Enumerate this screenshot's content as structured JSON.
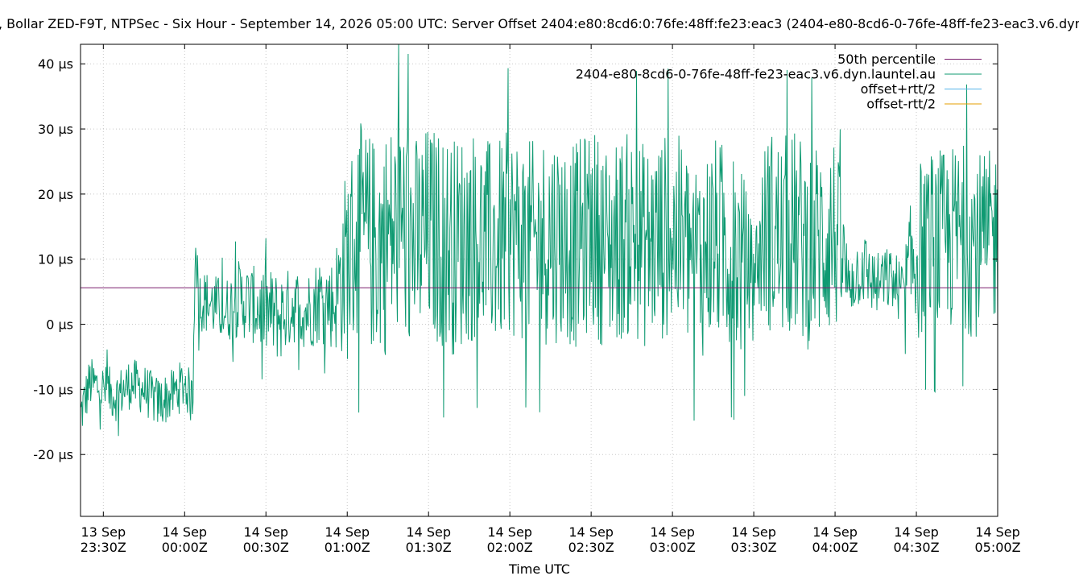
{
  "chart_data": {
    "type": "line",
    "title": ", Bollar ZED-F9T, NTPSec - Six Hour - September 14, 2026 05:00 UTC: Server Offset 2404:e80:8cd6:0:76fe:48ff:fe23:eac3 (2404-e80-8cd6-0-76fe-48ff-fe23-eac3.v6.dyn.",
    "xlabel": "Time UTC",
    "ylabel": "",
    "x_range": [
      "2026-09-13 23:21:35Z",
      "2026-09-14 05:00:00Z"
    ],
    "ylim": [
      -29.5,
      43
    ],
    "y_ticks": [
      {
        "value": 40,
        "label": "40 µs"
      },
      {
        "value": 30,
        "label": "30 µs"
      },
      {
        "value": 20,
        "label": "20 µs"
      },
      {
        "value": 10,
        "label": "10 µs"
      },
      {
        "value": 0,
        "label": "0 µs"
      },
      {
        "value": -10,
        "label": "-10 µs"
      },
      {
        "value": -20,
        "label": "-20 µs"
      }
    ],
    "x_ticks": [
      {
        "value": "2026-09-13 23:30Z",
        "label1": "13 Sep",
        "label2": "23:30Z"
      },
      {
        "value": "2026-09-14 00:00Z",
        "label1": "14 Sep",
        "label2": "00:00Z"
      },
      {
        "value": "2026-09-14 00:30Z",
        "label1": "14 Sep",
        "label2": "00:30Z"
      },
      {
        "value": "2026-09-14 01:00Z",
        "label1": "14 Sep",
        "label2": "01:00Z"
      },
      {
        "value": "2026-09-14 01:30Z",
        "label1": "14 Sep",
        "label2": "01:30Z"
      },
      {
        "value": "2026-09-14 02:00Z",
        "label1": "14 Sep",
        "label2": "02:00Z"
      },
      {
        "value": "2026-09-14 02:30Z",
        "label1": "14 Sep",
        "label2": "02:30Z"
      },
      {
        "value": "2026-09-14 03:00Z",
        "label1": "14 Sep",
        "label2": "03:00Z"
      },
      {
        "value": "2026-09-14 03:30Z",
        "label1": "14 Sep",
        "label2": "03:30Z"
      },
      {
        "value": "2026-09-14 04:00Z",
        "label1": "14 Sep",
        "label2": "04:00Z"
      },
      {
        "value": "2026-09-14 04:30Z",
        "label1": "14 Sep",
        "label2": "04:30Z"
      },
      {
        "value": "2026-09-14 05:00Z",
        "label1": "14 Sep",
        "label2": "05:00Z"
      }
    ],
    "grid": true,
    "legend_position": "top-right",
    "series": [
      {
        "name": "50th percentile",
        "color": "#7a1f6e",
        "x": [
          "2026-09-13 23:21:35Z",
          "2026-09-14 05:00:00Z"
        ],
        "values": [
          5.6,
          5.6
        ]
      },
      {
        "name": "2404-e80-8cd6-0-76fe-48ff-fe23-eac3.v6.dyn.launtel.au",
        "color": "#0f9a72",
        "x": [
          "2026-09-13 23:21:35Z",
          "2026-09-13 23:25Z",
          "2026-09-13 23:30Z",
          "2026-09-13 23:35Z",
          "2026-09-13 23:40Z",
          "2026-09-13 23:45Z",
          "2026-09-13 23:50Z",
          "2026-09-13 23:55Z",
          "2026-09-14 00:00Z",
          "2026-09-14 00:03Z",
          "2026-09-14 00:04Z",
          "2026-09-14 00:05Z",
          "2026-09-14 00:10Z",
          "2026-09-14 00:15Z",
          "2026-09-14 00:20Z",
          "2026-09-14 00:25Z",
          "2026-09-14 00:30Z",
          "2026-09-14 00:35Z",
          "2026-09-14 00:40Z",
          "2026-09-14 00:45Z",
          "2026-09-14 00:50Z",
          "2026-09-14 00:55Z",
          "2026-09-14 01:00Z",
          "2026-09-14 01:05Z",
          "2026-09-14 01:10Z",
          "2026-09-14 01:15Z",
          "2026-09-14 01:20Z",
          "2026-09-14 01:25Z",
          "2026-09-14 01:30Z",
          "2026-09-14 01:35Z",
          "2026-09-14 01:40Z",
          "2026-09-14 01:45Z",
          "2026-09-14 01:50Z",
          "2026-09-14 01:55Z",
          "2026-09-14 02:00Z",
          "2026-09-14 02:05Z",
          "2026-09-14 02:10Z",
          "2026-09-14 02:15Z",
          "2026-09-14 02:20Z",
          "2026-09-14 02:25Z",
          "2026-09-14 02:30Z",
          "2026-09-14 02:35Z",
          "2026-09-14 02:40Z",
          "2026-09-14 02:45Z",
          "2026-09-14 02:50Z",
          "2026-09-14 02:55Z",
          "2026-09-14 03:00Z",
          "2026-09-14 03:05Z",
          "2026-09-14 03:10Z",
          "2026-09-14 03:15Z",
          "2026-09-14 03:20Z",
          "2026-09-14 03:25Z",
          "2026-09-14 03:30Z",
          "2026-09-14 03:35Z",
          "2026-09-14 03:40Z",
          "2026-09-14 03:45Z",
          "2026-09-14 03:50Z",
          "2026-09-14 03:55Z",
          "2026-09-14 04:00Z",
          "2026-09-14 04:05Z",
          "2026-09-14 04:10Z",
          "2026-09-14 04:15Z",
          "2026-09-14 04:20Z",
          "2026-09-14 04:25Z",
          "2026-09-14 04:30Z",
          "2026-09-14 04:35Z",
          "2026-09-14 04:40Z",
          "2026-09-14 04:45Z",
          "2026-09-14 04:50Z",
          "2026-09-14 04:55Z",
          "2026-09-14 05:00Z"
        ],
        "values": [
          -14,
          -9,
          -10,
          -11,
          -9,
          -10,
          -12,
          -11,
          -9,
          -12,
          15,
          4,
          3,
          2,
          4,
          3,
          2,
          1,
          3,
          2,
          4,
          3,
          10,
          14,
          12,
          13,
          15,
          12,
          14,
          13,
          12,
          14,
          13,
          12,
          14,
          13,
          12,
          14,
          13,
          12,
          15,
          12,
          13,
          14,
          12,
          13,
          14,
          12,
          10,
          13,
          12,
          10,
          8,
          15,
          13,
          14,
          12,
          13,
          14,
          6,
          9,
          6,
          7,
          5,
          11,
          13,
          12,
          14,
          13,
          12,
          14
        ],
        "spread": [
          4,
          4,
          4,
          4,
          4,
          4,
          4,
          4,
          4,
          4,
          4,
          5,
          5,
          5,
          6,
          6,
          7,
          7,
          6,
          6,
          7,
          7,
          16,
          17,
          17,
          18,
          18,
          17,
          17,
          17,
          17,
          17,
          16,
          16,
          16,
          16,
          16,
          17,
          16,
          16,
          16,
          16,
          16,
          16,
          16,
          16,
          16,
          16,
          16,
          16,
          16,
          16,
          6,
          16,
          16,
          16,
          16,
          16,
          16,
          5,
          6,
          5,
          5,
          5,
          14,
          14,
          15,
          14,
          15,
          14,
          14
        ]
      },
      {
        "name": "offset+rtt/2",
        "color": "#56b4e9",
        "values": []
      },
      {
        "name": "offset-rtt/2",
        "color": "#e69f00",
        "values": []
      }
    ]
  }
}
